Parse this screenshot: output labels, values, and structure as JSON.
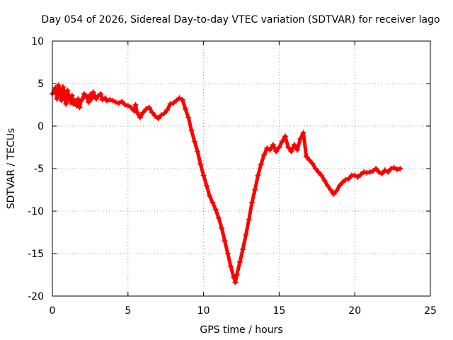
{
  "chart_data": {
    "type": "scatter",
    "title": "Day 054 of 2026, Sidereal Day-to-day VTEC variation (SDTVAR) for receiver lago",
    "xlabel": "GPS time / hours",
    "ylabel": "SDTVAR / TECUs",
    "xlim": [
      0,
      25
    ],
    "ylim": [
      -20,
      10
    ],
    "xticks": [
      0,
      5,
      10,
      15,
      20,
      25
    ],
    "yticks": [
      -20,
      -15,
      -10,
      -5,
      0,
      5,
      10
    ],
    "grid": true,
    "marker": "plus",
    "series": [
      {
        "name": "SDTVAR",
        "color": "#ff0000",
        "points": [
          [
            0.0,
            3.8
          ],
          [
            0.2,
            4.5
          ],
          [
            0.3,
            3.2
          ],
          [
            0.4,
            4.8
          ],
          [
            0.5,
            4.0
          ],
          [
            0.6,
            3.0
          ],
          [
            0.7,
            4.6
          ],
          [
            0.8,
            3.6
          ],
          [
            0.9,
            2.6
          ],
          [
            1.0,
            4.2
          ],
          [
            1.1,
            3.4
          ],
          [
            1.2,
            2.8
          ],
          [
            1.3,
            3.6
          ],
          [
            1.4,
            2.6
          ],
          [
            1.5,
            3.0
          ],
          [
            1.6,
            2.4
          ],
          [
            1.7,
            3.2
          ],
          [
            1.8,
            2.2
          ],
          [
            1.9,
            3.0
          ],
          [
            2.0,
            3.2
          ],
          [
            2.1,
            3.8
          ],
          [
            2.3,
            3.4
          ],
          [
            2.4,
            2.8
          ],
          [
            2.5,
            3.7
          ],
          [
            2.6,
            3.2
          ],
          [
            2.7,
            4.0
          ],
          [
            2.8,
            3.6
          ],
          [
            2.9,
            3.2
          ],
          [
            3.0,
            3.5
          ],
          [
            3.2,
            3.8
          ],
          [
            3.3,
            3.1
          ],
          [
            3.5,
            3.3
          ],
          [
            3.6,
            3.0
          ],
          [
            3.8,
            3.1
          ],
          [
            4.0,
            3.0
          ],
          [
            4.2,
            2.8
          ],
          [
            4.4,
            2.7
          ],
          [
            4.6,
            2.9
          ],
          [
            4.8,
            2.5
          ],
          [
            5.0,
            2.4
          ],
          [
            5.2,
            2.2
          ],
          [
            5.4,
            1.8
          ],
          [
            5.5,
            2.5
          ],
          [
            5.6,
            1.6
          ],
          [
            5.8,
            1.0
          ],
          [
            6.0,
            1.6
          ],
          [
            6.2,
            2.0
          ],
          [
            6.4,
            2.2
          ],
          [
            6.6,
            1.6
          ],
          [
            6.8,
            1.2
          ],
          [
            7.0,
            0.9
          ],
          [
            7.2,
            1.3
          ],
          [
            7.4,
            1.5
          ],
          [
            7.6,
            1.9
          ],
          [
            7.8,
            2.6
          ],
          [
            8.0,
            2.7
          ],
          [
            8.2,
            3.0
          ],
          [
            8.4,
            3.3
          ],
          [
            8.6,
            3.1
          ],
          [
            8.8,
            2.0
          ],
          [
            9.0,
            1.0
          ],
          [
            9.2,
            -0.5
          ],
          [
            9.4,
            -1.8
          ],
          [
            9.6,
            -3.0
          ],
          [
            9.8,
            -4.5
          ],
          [
            10.0,
            -5.8
          ],
          [
            10.2,
            -7.0
          ],
          [
            10.4,
            -8.2
          ],
          [
            10.6,
            -9.0
          ],
          [
            10.8,
            -9.8
          ],
          [
            11.0,
            -10.8
          ],
          [
            11.2,
            -12.0
          ],
          [
            11.4,
            -13.5
          ],
          [
            11.6,
            -15.0
          ],
          [
            11.8,
            -16.5
          ],
          [
            12.0,
            -17.8
          ],
          [
            12.1,
            -18.4
          ],
          [
            12.2,
            -17.5
          ],
          [
            12.4,
            -16.0
          ],
          [
            12.6,
            -14.5
          ],
          [
            12.8,
            -12.8
          ],
          [
            13.0,
            -11.0
          ],
          [
            13.2,
            -9.0
          ],
          [
            13.4,
            -7.5
          ],
          [
            13.6,
            -5.8
          ],
          [
            13.8,
            -4.5
          ],
          [
            14.0,
            -3.4
          ],
          [
            14.2,
            -2.6
          ],
          [
            14.4,
            -2.8
          ],
          [
            14.6,
            -2.2
          ],
          [
            14.8,
            -3.0
          ],
          [
            15.0,
            -2.5
          ],
          [
            15.2,
            -1.8
          ],
          [
            15.4,
            -1.2
          ],
          [
            15.6,
            -2.5
          ],
          [
            15.8,
            -3.0
          ],
          [
            16.0,
            -2.2
          ],
          [
            16.2,
            -2.8
          ],
          [
            16.4,
            -1.5
          ],
          [
            16.6,
            -0.8
          ],
          [
            16.8,
            -3.6
          ],
          [
            17.0,
            -4.0
          ],
          [
            17.2,
            -4.4
          ],
          [
            17.4,
            -5.0
          ],
          [
            17.6,
            -5.4
          ],
          [
            17.8,
            -5.8
          ],
          [
            18.0,
            -6.4
          ],
          [
            18.2,
            -7.0
          ],
          [
            18.4,
            -7.5
          ],
          [
            18.6,
            -8.0
          ],
          [
            18.8,
            -7.6
          ],
          [
            19.0,
            -7.0
          ],
          [
            19.2,
            -6.6
          ],
          [
            19.4,
            -6.3
          ],
          [
            19.6,
            -6.2
          ],
          [
            19.8,
            -5.8
          ],
          [
            20.0,
            -5.8
          ],
          [
            20.2,
            -6.0
          ],
          [
            20.4,
            -5.7
          ],
          [
            20.6,
            -5.4
          ],
          [
            20.8,
            -5.5
          ],
          [
            21.0,
            -5.4
          ],
          [
            21.2,
            -5.3
          ],
          [
            21.4,
            -5.0
          ],
          [
            21.6,
            -5.4
          ],
          [
            21.8,
            -5.6
          ],
          [
            22.0,
            -5.2
          ],
          [
            22.2,
            -5.4
          ],
          [
            22.4,
            -5.0
          ],
          [
            22.6,
            -4.9
          ],
          [
            22.8,
            -5.1
          ],
          [
            23.0,
            -5.0
          ]
        ]
      }
    ]
  }
}
